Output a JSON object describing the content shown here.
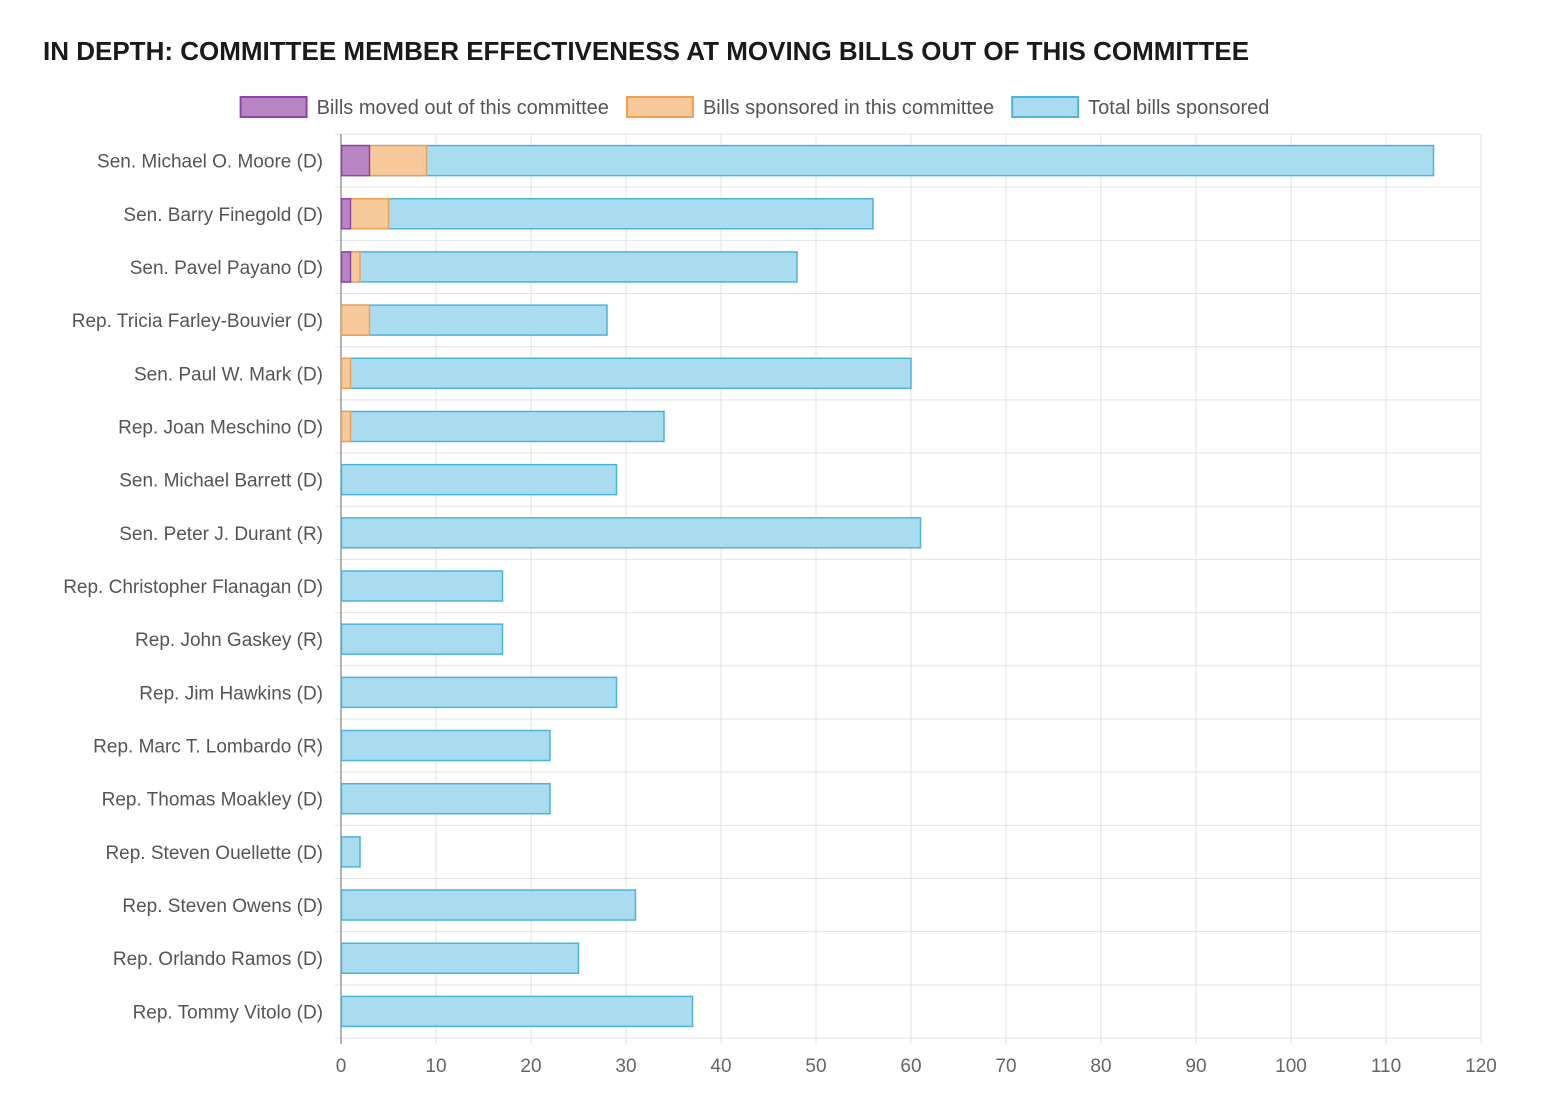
{
  "chart_data": {
    "type": "bar",
    "orientation": "horizontal",
    "stacked": false,
    "title": "IN DEPTH: COMMITTEE MEMBER EFFECTIVENESS AT MOVING BILLS OUT OF THIS COMMITTEE",
    "categories": [
      "Sen. Michael O. Moore (D)",
      "Sen. Barry Finegold (D)",
      "Sen. Pavel Payano (D)",
      "Rep. Tricia Farley-Bouvier (D)",
      "Sen. Paul W. Mark (D)",
      "Rep. Joan Meschino (D)",
      "Sen. Michael Barrett (D)",
      "Sen. Peter J. Durant (R)",
      "Rep. Christopher Flanagan (D)",
      "Rep. John Gaskey (R)",
      "Rep. Jim Hawkins (D)",
      "Rep. Marc T. Lombardo (R)",
      "Rep. Thomas Moakley (D)",
      "Rep. Steven Ouellette (D)",
      "Rep. Steven Owens (D)",
      "Rep. Orlando Ramos (D)",
      "Rep. Tommy Vitolo (D)"
    ],
    "series": [
      {
        "name": "Total bills sponsored",
        "fill": "#aadcf0",
        "stroke": "#4db3dc",
        "values": [
          115,
          56,
          48,
          28,
          60,
          34,
          29,
          61,
          17,
          17,
          29,
          22,
          22,
          2,
          31,
          25,
          37
        ]
      },
      {
        "name": "Bills sponsored in this committee",
        "fill": "#f7c99b",
        "stroke": "#f0a050",
        "values": [
          9,
          5,
          2,
          3,
          1,
          1,
          0,
          0,
          0,
          0,
          0,
          0,
          0,
          0,
          0,
          0,
          0
        ]
      },
      {
        "name": "Bills moved out of this committee",
        "fill": "#b784c4",
        "stroke": "#8e44ad",
        "values": [
          3,
          1,
          1,
          0,
          0,
          0,
          0,
          0,
          0,
          0,
          0,
          0,
          0,
          0,
          0,
          0,
          0
        ]
      }
    ],
    "legend": [
      "Bills moved out of this committee",
      "Bills sponsored in this committee",
      "Total bills sponsored"
    ],
    "legend_position": "top",
    "xlim": [
      0,
      120
    ],
    "xticks": [
      0,
      10,
      20,
      30,
      40,
      50,
      60,
      70,
      80,
      90,
      100,
      110,
      120
    ],
    "grid": true,
    "xlabel": "",
    "ylabel": ""
  }
}
